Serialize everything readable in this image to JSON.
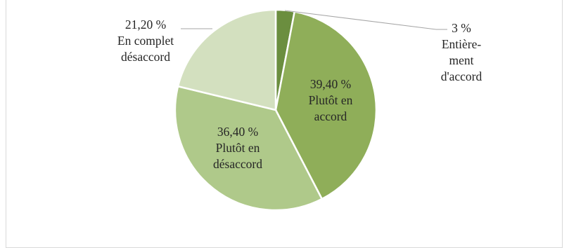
{
  "chart_data": {
    "type": "pie",
    "slices": [
      {
        "value": 3.0,
        "color": "#6b8e3f",
        "label_lines": [
          "3 %",
          "Entière-",
          "ment",
          "d'accord"
        ]
      },
      {
        "value": 39.4,
        "color": "#8fae59",
        "label_lines": [
          "39,40 %",
          "Plutôt en",
          "accord"
        ]
      },
      {
        "value": 36.4,
        "color": "#afc98a",
        "label_lines": [
          "36,40 %",
          "Plutôt en",
          "désaccord"
        ]
      },
      {
        "value": 21.2,
        "color": "#d3e0bf",
        "label_lines": [
          "21,20 %",
          "En complet",
          "désaccord"
        ]
      }
    ],
    "title": "",
    "legend": "none",
    "label_style": "value-and-category"
  }
}
